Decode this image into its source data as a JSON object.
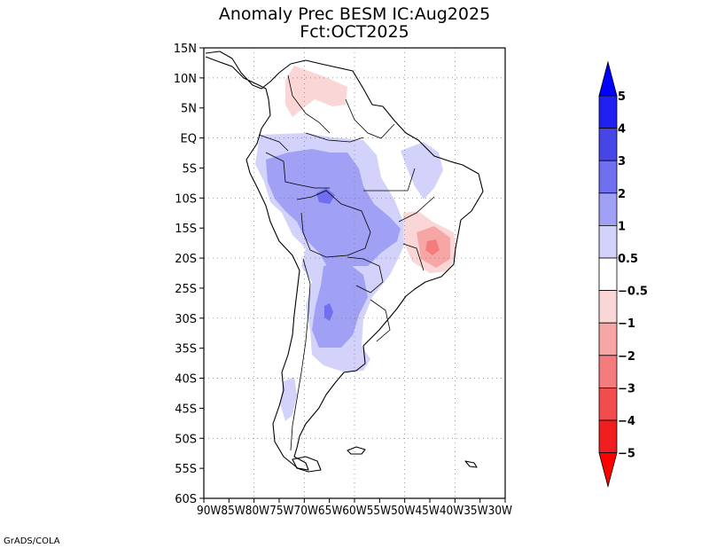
{
  "title": {
    "line1": "Anomaly Prec BESM IC:Aug2025",
    "line2": "Fct:OCT2025"
  },
  "latitude_labels": [
    "15N",
    "10N",
    "5N",
    "EQ",
    "5S",
    "10S",
    "15S",
    "20S",
    "25S",
    "30S",
    "35S",
    "40S",
    "45S",
    "50S",
    "55S",
    "60S"
  ],
  "longitude_labels_text": "90W85W80W75W70W65W60W55W50W45W40W35W30W",
  "colorbar": {
    "levels": [
      "5",
      "4",
      "3",
      "2",
      "1",
      "0.5",
      "−0.5",
      "−1",
      "−2",
      "−3",
      "−4",
      "−5"
    ],
    "colors": [
      "#0000ff",
      "#2020f0",
      "#4646e6",
      "#6f6ff0",
      "#a0a0f5",
      "#d2d2fa",
      "#ffffff",
      "#fbd6d6",
      "#f7a6a6",
      "#f47c7c",
      "#f24d4d",
      "#f01e1e",
      "#ff0000"
    ]
  },
  "anomaly_colors": {
    "light_blue": "#d2d2fa",
    "blue": "#a0a0f5",
    "mid_blue": "#6f6ff0",
    "light_red": "#fbd6d6",
    "red": "#f7a6a6",
    "mid_red": "#f47c7c"
  },
  "credit": "GrADS/COLA"
}
